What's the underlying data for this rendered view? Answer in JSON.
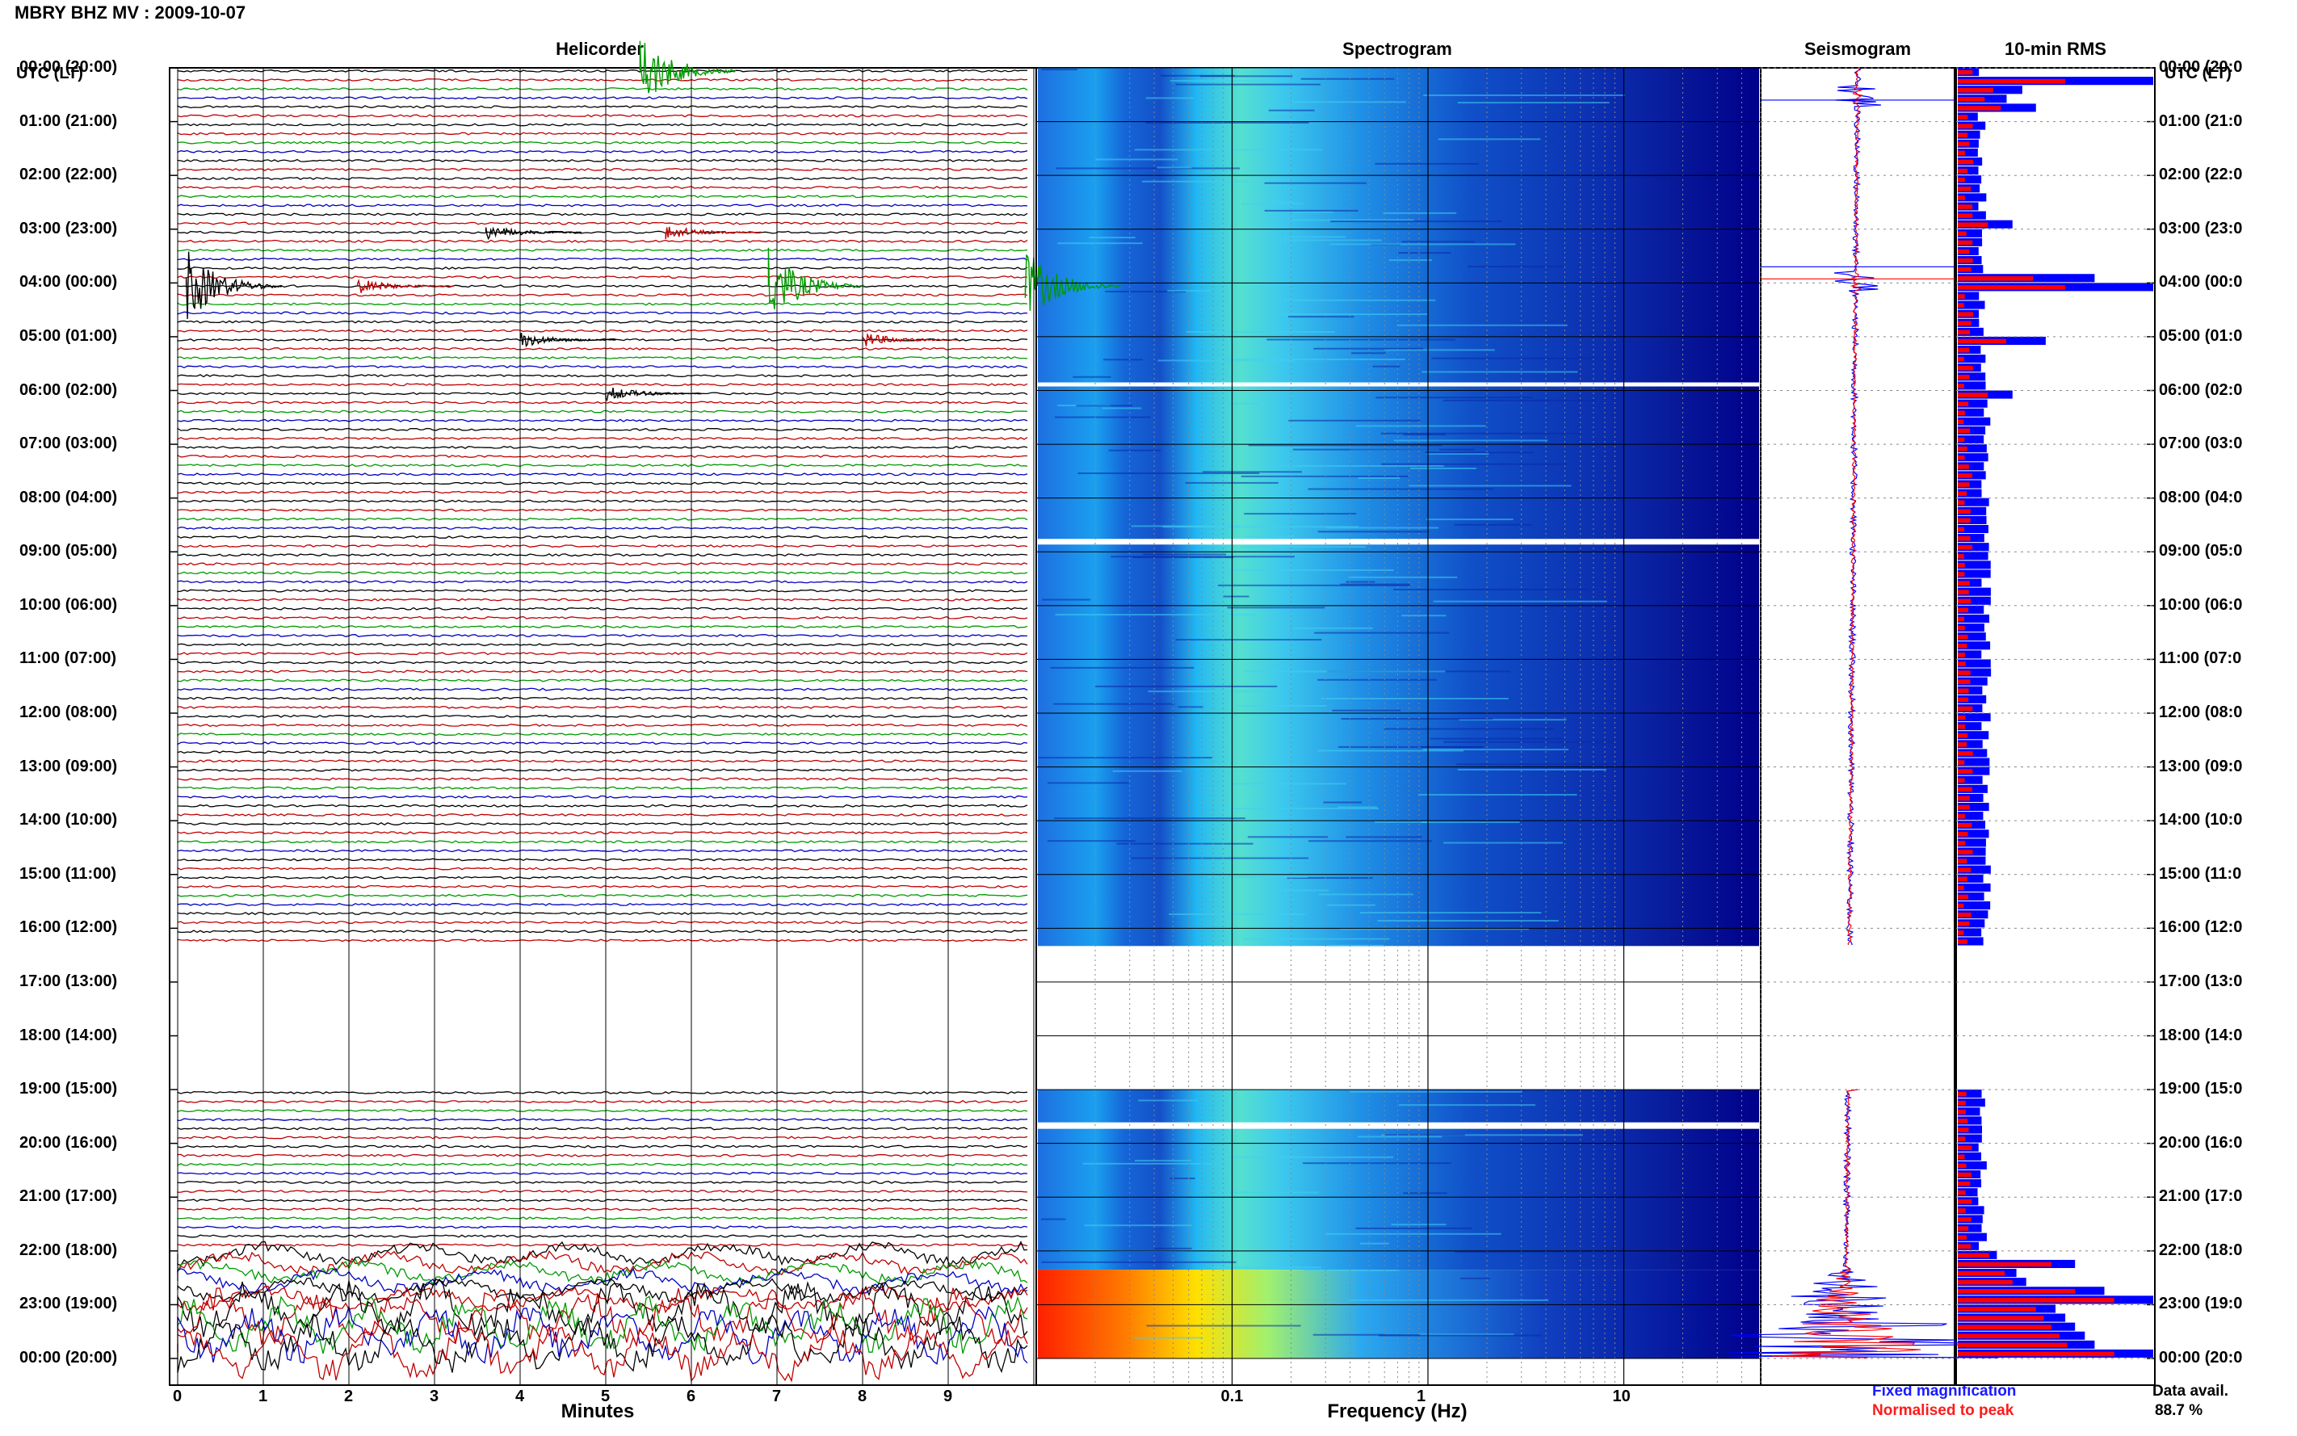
{
  "header": {
    "title": "MBRY BHZ MV : 2009-10-07"
  },
  "panels": {
    "helicorder": "Helicorder",
    "spectrogram": "Spectrogram",
    "seismogram": "Seismogram",
    "rms": "10-min RMS"
  },
  "axes": {
    "time_header_left": "UTC (LT)",
    "time_header_right": "UTC (LT)",
    "time_labels": [
      "00:00 (20:00)",
      "01:00 (21:00)",
      "02:00 (22:00)",
      "03:00 (23:00)",
      "04:00 (00:00)",
      "05:00 (01:00)",
      "06:00 (02:00)",
      "07:00 (03:00)",
      "08:00 (04:00)",
      "09:00 (05:00)",
      "10:00 (06:00)",
      "11:00 (07:00)",
      "12:00 (08:00)",
      "13:00 (09:00)",
      "14:00 (10:00)",
      "15:00 (11:00)",
      "16:00 (12:00)",
      "17:00 (13:00)",
      "18:00 (14:00)",
      "19:00 (15:00)",
      "20:00 (16:00)",
      "21:00 (17:00)",
      "22:00 (18:00)",
      "23:00 (19:00)",
      "00:00 (20:00)"
    ],
    "minutes_ticks": [
      "0",
      "1",
      "2",
      "3",
      "4",
      "5",
      "6",
      "7",
      "8",
      "9"
    ],
    "minutes_label": "Minutes",
    "freq_ticks": [
      "0.1",
      "1",
      "10"
    ],
    "freq_label": "Frequency (Hz)"
  },
  "legend": {
    "fixed": "Fixed magnification",
    "normalised": "Normalised to peak",
    "data_avail_label": "Data avail.",
    "data_avail_value": "88.7 %"
  },
  "colors": {
    "trace_cycle": [
      "#000000",
      "#c00000",
      "#009a00",
      "#0000c0"
    ],
    "spectrogram_low": "#00008b",
    "spectrogram_high": "#ff0000",
    "rms_fixed": "#0000ff",
    "rms_normalised": "#ff0000"
  },
  "chart_data": {
    "type": "heatmap",
    "title": "MBRY BHZ MV : 2009-10-07",
    "hours_utc": [
      "00",
      "01",
      "02",
      "03",
      "04",
      "05",
      "06",
      "07",
      "08",
      "09",
      "10",
      "11",
      "12",
      "13",
      "14",
      "15",
      "16",
      "17",
      "18",
      "19",
      "20",
      "21",
      "22",
      "23"
    ],
    "hours_with_data": [
      "00",
      "01",
      "02",
      "03",
      "04",
      "05",
      "06",
      "07",
      "08",
      "09",
      "10",
      "11",
      "12",
      "13",
      "14",
      "15",
      "16",
      "19",
      "20",
      "21",
      "22",
      "23"
    ],
    "data_gap_utc": [
      "16:20",
      "19:00"
    ],
    "events_minutes": [
      {
        "hour": "00",
        "minute": 5.4
      },
      {
        "hour": "03",
        "minute": 3.6
      },
      {
        "hour": "03",
        "minute": 5.7
      },
      {
        "hour": "04",
        "minute": 0.1
      },
      {
        "hour": "04",
        "minute": 2.1
      },
      {
        "hour": "04",
        "minute": 6.9
      },
      {
        "hour": "04",
        "minute": 9.9
      },
      {
        "hour": "05",
        "minute": 4.0
      },
      {
        "hour": "05",
        "minute": 8.0
      },
      {
        "hour": "06",
        "minute": 5.0
      }
    ],
    "spectrogram_freq_range_hz": [
      0.01,
      50
    ],
    "rms_10min_fixed": [
      {
        "time": "00:10",
        "value": 1.0
      },
      {
        "time": "00:20",
        "value": 0.33
      },
      {
        "time": "00:30",
        "value": 0.25
      },
      {
        "time": "00:40",
        "value": 0.4
      },
      {
        "time": "02:50",
        "value": 0.28
      },
      {
        "time": "03:50",
        "value": 0.7
      },
      {
        "time": "04:00",
        "value": 1.0
      },
      {
        "time": "05:00",
        "value": 0.45
      },
      {
        "time": "06:00",
        "value": 0.28
      },
      {
        "time": "22:10",
        "value": 0.6
      },
      {
        "time": "22:40",
        "value": 0.75
      },
      {
        "time": "22:50",
        "value": 1.0
      },
      {
        "time": "23:50",
        "value": 1.0
      }
    ],
    "data_availability_percent": 88.7
  }
}
